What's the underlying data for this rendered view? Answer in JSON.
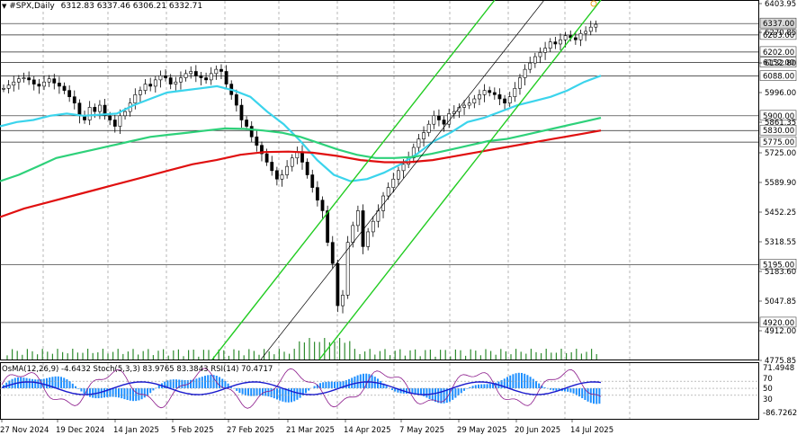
{
  "header": {
    "icon": "triangle-down-icon",
    "symbol": "#SPX,Daily",
    "ohlc": "6312.83 6337.46 6306.21 6332.71"
  },
  "indicator_header": "OsMA(12,26,9) -4.6432  Stoch(5,3,3) 83.9765 83.3843  RSI(14) 70.4717",
  "price_axis": {
    "ticks": [
      "6403.95",
      "6270.85",
      "6132.80",
      "5996.00",
      "5861.35",
      "5725.00",
      "5589.90",
      "5452.25",
      "5318.55",
      "5183.60",
      "5047.85",
      "4912.00",
      "4775.85"
    ],
    "levels": [
      {
        "label": "6337.00",
        "value": 6337.0,
        "highlight": true
      },
      {
        "label": "6283.00",
        "value": 6283.0,
        "highlight": false
      },
      {
        "label": "6202.00",
        "value": 6202.0,
        "highlight": false
      },
      {
        "label": "6152.00",
        "value": 6152.0,
        "highlight": false
      },
      {
        "label": "6088.00",
        "value": 6088.0,
        "highlight": false
      },
      {
        "label": "5900.00",
        "value": 5900.0,
        "highlight": false
      },
      {
        "label": "5830.00",
        "value": 5830.0,
        "highlight": false
      },
      {
        "label": "5775.00",
        "value": 5775.0,
        "highlight": false
      },
      {
        "label": "5195.00",
        "value": 5195.0,
        "highlight": false
      },
      {
        "label": "4920.00",
        "value": 4920.0,
        "highlight": false
      }
    ]
  },
  "indicator_axis": [
    "71.4948",
    "70",
    "50",
    "30",
    "-86.7262"
  ],
  "time_axis": [
    "27 Nov 2024",
    "19 Dec 2024",
    "14 Jan 2025",
    "5 Feb 2025",
    "27 Feb 2025",
    "21 Mar 2025",
    "14 Apr 2025",
    "7 May 2025",
    "29 May 2025",
    "20 Jun 2025",
    "14 Jul 2025"
  ],
  "colors": {
    "ema_fast": "#3bd4ec",
    "ema_mid": "#2ed17a",
    "ema_slow": "#e01010",
    "channel": "#22cc22",
    "candle": "#000000",
    "osma": "#1e90ff",
    "stoch": "#1a1acd",
    "rsi": "#8b1a8b",
    "grid": "#000000"
  },
  "chart_data": {
    "type": "candlestick",
    "title": "#SPX,Daily",
    "series": [
      {
        "name": "#SPX,Daily",
        "close": [
          6030,
          6045,
          6060,
          6075,
          6080,
          6070,
          6050,
          6040,
          6060,
          6075,
          6055,
          6040,
          6020,
          5990,
          5960,
          5900,
          5880,
          5940,
          5920,
          5950,
          5900,
          5880,
          5850,
          5900,
          5920,
          5960,
          6000,
          6020,
          6050,
          6040,
          6070,
          6090,
          6080,
          6050,
          6060,
          6080,
          6100,
          6110,
          6090,
          6080,
          6070,
          6100,
          6120,
          6110,
          6050,
          6000,
          5950,
          5880,
          5850,
          5800,
          5760,
          5720,
          5680,
          5640,
          5600,
          5620,
          5660,
          5700,
          5730,
          5680,
          5620,
          5560,
          5500,
          5450,
          5300,
          5200,
          5000,
          5050,
          5300,
          5380,
          5450,
          5280,
          5350,
          5400,
          5450,
          5520,
          5560,
          5600,
          5640,
          5670,
          5700,
          5750,
          5790,
          5820,
          5860,
          5900,
          5880,
          5860,
          5910,
          5920,
          5940,
          5950,
          5960,
          5980,
          6000,
          6020,
          6010,
          6000,
          5980,
          5960,
          5990,
          6030,
          6080,
          6120,
          6150,
          6180,
          6200,
          6220,
          6250,
          6240,
          6260,
          6280,
          6270,
          6260,
          6290,
          6300,
          6320,
          6333
        ]
      },
      {
        "name": "EMA fast",
        "values": [
          5850,
          5870,
          5880,
          5900,
          5910,
          5900,
          5905,
          5910,
          5950,
          5980,
          6010,
          6020,
          6030,
          6040,
          6020,
          5990,
          5920,
          5860,
          5780,
          5690,
          5620,
          5590,
          5600,
          5630,
          5670,
          5720,
          5780,
          5820,
          5870,
          5890,
          5920,
          5950,
          5970,
          5990,
          6020,
          6060,
          6090
        ]
      },
      {
        "name": "EMA mid",
        "values": [
          5590,
          5620,
          5660,
          5700,
          5720,
          5740,
          5760,
          5780,
          5800,
          5810,
          5820,
          5830,
          5840,
          5838,
          5830,
          5820,
          5800,
          5770,
          5740,
          5715,
          5700,
          5700,
          5705,
          5720,
          5740,
          5760,
          5780,
          5790,
          5810,
          5830,
          5850,
          5870,
          5890
        ]
      },
      {
        "name": "EMA slow",
        "values": [
          5420,
          5460,
          5490,
          5520,
          5550,
          5580,
          5610,
          5640,
          5670,
          5690,
          5715,
          5728,
          5730,
          5725,
          5710,
          5690,
          5680,
          5680,
          5690,
          5710,
          5730,
          5750,
          5770,
          5790,
          5810,
          5830
        ]
      }
    ],
    "ylim": [
      4745,
      6440
    ]
  }
}
